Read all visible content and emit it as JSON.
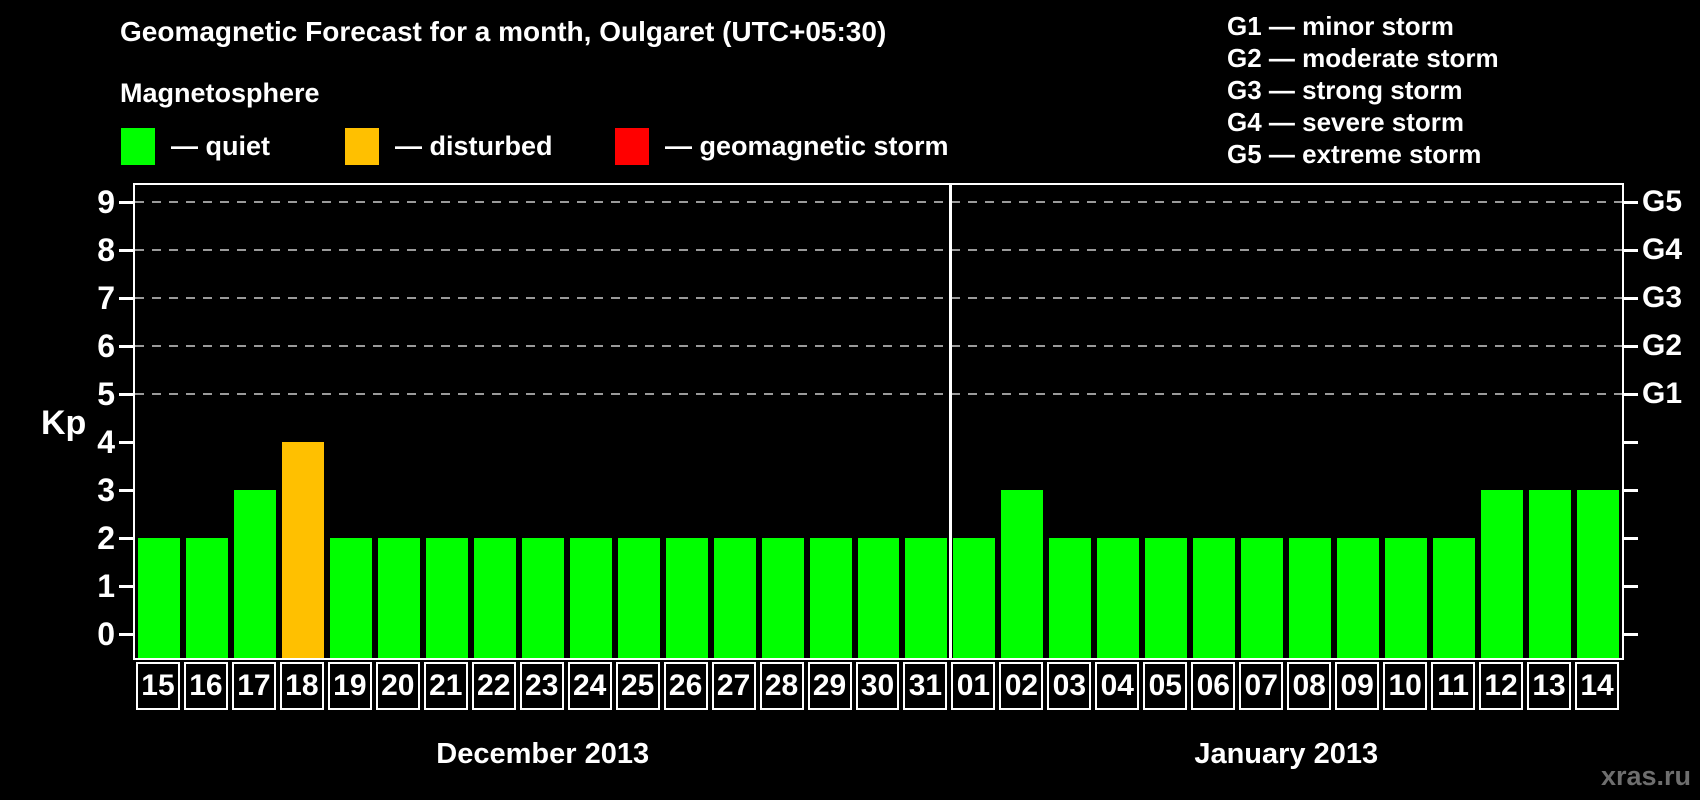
{
  "title": "Geomagnetic Forecast for a month, Oulgaret (UTC+05:30)",
  "subtitle": "Magnetosphere",
  "legend": {
    "items": [
      {
        "key": "quiet",
        "label": "— quiet",
        "color": "#00ff00"
      },
      {
        "key": "disturbed",
        "label": "— disturbed",
        "color": "#ffc000"
      },
      {
        "key": "storm",
        "label": "— geomagnetic storm",
        "color": "#ff0000"
      }
    ]
  },
  "g_legend": [
    {
      "label": "G1 — minor storm"
    },
    {
      "label": "G2 — moderate storm"
    },
    {
      "label": "G3 — strong storm"
    },
    {
      "label": "G4 — severe storm"
    },
    {
      "label": "G5 — extreme storm"
    }
  ],
  "watermark": "xras.ru",
  "chart_data": {
    "type": "bar",
    "title": "Geomagnetic Forecast for a month, Oulgaret (UTC+05:30)",
    "ylabel": "Kp",
    "ylim": [
      0,
      9
    ],
    "yticks": [
      0,
      1,
      2,
      3,
      4,
      5,
      6,
      7,
      8,
      9
    ],
    "grid_levels": [
      5,
      6,
      7,
      8,
      9
    ],
    "grid_on": true,
    "legend_position": "top",
    "right_axis": [
      {
        "level": 5,
        "label": "G1"
      },
      {
        "level": 6,
        "label": "G2"
      },
      {
        "level": 7,
        "label": "G3"
      },
      {
        "level": 8,
        "label": "G4"
      },
      {
        "level": 9,
        "label": "G5"
      }
    ],
    "status_colors": {
      "quiet": "#00ff00",
      "disturbed": "#ffc000",
      "storm": "#ff0000"
    },
    "months": [
      {
        "label": "December 2013",
        "days": [
          "15",
          "16",
          "17",
          "18",
          "19",
          "20",
          "21",
          "22",
          "23",
          "24",
          "25",
          "26",
          "27",
          "28",
          "29",
          "30",
          "31"
        ],
        "values": [
          2,
          2,
          3,
          4,
          2,
          2,
          2,
          2,
          2,
          2,
          2,
          2,
          2,
          2,
          2,
          2,
          2
        ],
        "statuses": [
          "quiet",
          "quiet",
          "quiet",
          "disturbed",
          "quiet",
          "quiet",
          "quiet",
          "quiet",
          "quiet",
          "quiet",
          "quiet",
          "quiet",
          "quiet",
          "quiet",
          "quiet",
          "quiet",
          "quiet"
        ]
      },
      {
        "label": "January 2013",
        "days": [
          "01",
          "02",
          "03",
          "04",
          "05",
          "06",
          "07",
          "08",
          "09",
          "10",
          "11",
          "12",
          "13",
          "14"
        ],
        "values": [
          2,
          3,
          2,
          2,
          2,
          2,
          2,
          2,
          2,
          2,
          2,
          3,
          3,
          3
        ],
        "statuses": [
          "quiet",
          "quiet",
          "quiet",
          "quiet",
          "quiet",
          "quiet",
          "quiet",
          "quiet",
          "quiet",
          "quiet",
          "quiet",
          "quiet",
          "quiet",
          "quiet"
        ]
      }
    ]
  }
}
